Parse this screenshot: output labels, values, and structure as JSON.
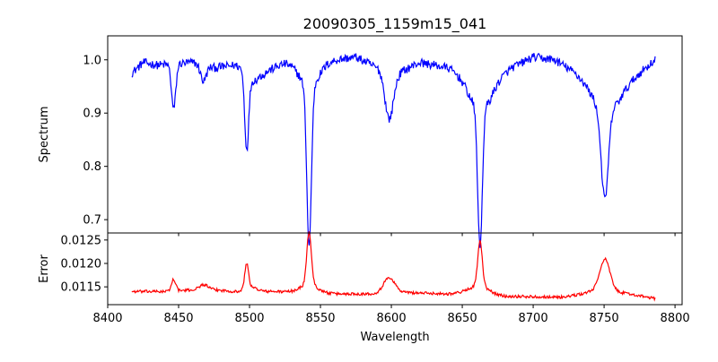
{
  "chart_data": [
    {
      "type": "line",
      "title": "20090305_1159m15_041",
      "ylabel": "Spectrum",
      "xlabel": "",
      "xlim": [
        8400,
        8805
      ],
      "ylim": [
        0.675,
        1.045
      ],
      "xticks": [
        8400,
        8450,
        8500,
        8550,
        8600,
        8650,
        8700,
        8750,
        8800
      ],
      "yticks": [
        0.7,
        0.8,
        0.9,
        1.0
      ],
      "ytick_labels": [
        "0.7",
        "0.8",
        "0.9",
        "1.0"
      ],
      "color": "#0000ff",
      "x_range": [
        8417,
        8786
      ],
      "baseline": [
        [
          8417,
          0.975
        ],
        [
          8425,
          0.995
        ],
        [
          8435,
          0.99
        ],
        [
          8460,
          0.995
        ],
        [
          8475,
          0.985
        ],
        [
          8490,
          0.99
        ],
        [
          8510,
          0.975
        ],
        [
          8525,
          0.995
        ],
        [
          8535,
          1.0
        ],
        [
          8560,
          1.0
        ],
        [
          8575,
          1.005
        ],
        [
          8590,
          0.985
        ],
        [
          8605,
          0.975
        ],
        [
          8620,
          0.995
        ],
        [
          8640,
          0.985
        ],
        [
          8655,
          0.96
        ],
        [
          8670,
          0.955
        ],
        [
          8685,
          0.985
        ],
        [
          8700,
          1.005
        ],
        [
          8715,
          1.0
        ],
        [
          8730,
          0.975
        ],
        [
          8745,
          0.94
        ],
        [
          8760,
          0.935
        ],
        [
          8775,
          0.975
        ],
        [
          8786,
          1.0
        ]
      ],
      "lines": [
        {
          "center": 8446.5,
          "depth": 0.085,
          "width": 1.5
        },
        {
          "center": 8467.5,
          "depth": 0.03,
          "width": 2.0
        },
        {
          "center": 8498.0,
          "depth": 0.14,
          "width": 1.4
        },
        {
          "center": 8502.0,
          "depth": 0.02,
          "width": 4.0
        },
        {
          "center": 8542.0,
          "depth": 0.3,
          "width": 1.6
        },
        {
          "center": 8542.0,
          "depth": 0.05,
          "width": 7.0
        },
        {
          "center": 8598.5,
          "depth": 0.09,
          "width": 3.0
        },
        {
          "center": 8662.5,
          "depth": 0.26,
          "width": 1.6
        },
        {
          "center": 8662.5,
          "depth": 0.05,
          "width": 7.0
        },
        {
          "center": 8750.5,
          "depth": 0.17,
          "width": 2.5
        },
        {
          "center": 8750.5,
          "depth": 0.03,
          "width": 8.0
        }
      ],
      "noise": 0.008
    },
    {
      "type": "line",
      "title": "",
      "ylabel": "Error",
      "xlabel": "Wavelength",
      "xlim": [
        8400,
        8805
      ],
      "ylim": [
        0.01112,
        0.01265
      ],
      "xticks": [
        8400,
        8450,
        8500,
        8550,
        8600,
        8650,
        8700,
        8750,
        8800
      ],
      "yticks": [
        0.0115,
        0.012,
        0.0125
      ],
      "ytick_labels": [
        "0.0115",
        "0.0120",
        "0.0125"
      ],
      "color": "#ff0000",
      "x_range": [
        8417,
        8786
      ],
      "baseline": [
        [
          8417,
          0.0114
        ],
        [
          8440,
          0.0114
        ],
        [
          8470,
          0.01145
        ],
        [
          8490,
          0.0114
        ],
        [
          8520,
          0.0114
        ],
        [
          8560,
          0.01135
        ],
        [
          8585,
          0.01135
        ],
        [
          8610,
          0.01138
        ],
        [
          8640,
          0.01135
        ],
        [
          8655,
          0.0114
        ],
        [
          8680,
          0.0113
        ],
        [
          8720,
          0.01128
        ],
        [
          8740,
          0.01135
        ],
        [
          8770,
          0.01133
        ],
        [
          8786,
          0.01125
        ]
      ],
      "lines": [
        {
          "center": 8446.5,
          "depth": -0.00025,
          "width": 1.5
        },
        {
          "center": 8467.5,
          "depth": -0.0001,
          "width": 3.0
        },
        {
          "center": 8498.0,
          "depth": -0.00055,
          "width": 1.4
        },
        {
          "center": 8502.0,
          "depth": -8e-05,
          "width": 4.0
        },
        {
          "center": 8542.0,
          "depth": -0.00112,
          "width": 1.6
        },
        {
          "center": 8542.0,
          "depth": -0.00018,
          "width": 6.0
        },
        {
          "center": 8598.5,
          "depth": -0.00033,
          "width": 4.0
        },
        {
          "center": 8662.5,
          "depth": -0.00095,
          "width": 1.6
        },
        {
          "center": 8662.5,
          "depth": -0.00015,
          "width": 6.0
        },
        {
          "center": 8750.5,
          "depth": -0.00065,
          "width": 3.5
        },
        {
          "center": 8750.5,
          "depth": -0.0001,
          "width": 9.0
        }
      ],
      "noise": 3e-05
    }
  ]
}
